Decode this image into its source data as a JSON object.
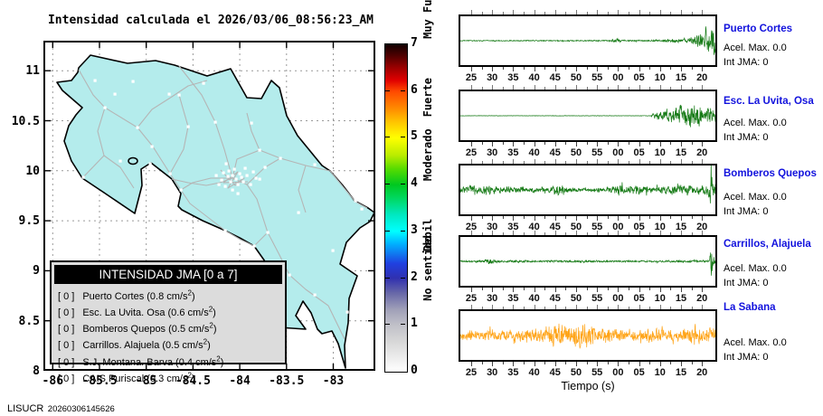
{
  "title": "Intensidad calculada el 2026/03/06_08:56:23_AM",
  "footer": {
    "label": "LISUCR",
    "number": "20260306145626"
  },
  "map": {
    "x_tick_labels": [
      "-86",
      "-85.5",
      "-85",
      "-84.5",
      "-84",
      "-83.5",
      "-83"
    ],
    "y_tick_labels": [
      "11",
      "10.5",
      "10",
      "9.5",
      "9",
      "8.5",
      "8"
    ],
    "land_color": "#b4ecec",
    "road_color": "#b5b5b5",
    "legend": {
      "title": "INTENSIDAD JMA [0 a 7]",
      "items": [
        {
          "bracket": "[ 0 ]",
          "name": "Puerto Cortes",
          "accel": "0.8 cm/s",
          "sup": "2",
          "tail": ")"
        },
        {
          "bracket": "[ 0 ]",
          "name": "Esc. La Uvita. Osa",
          "accel": "0.6 cm/s",
          "sup": "2",
          "tail": ")"
        },
        {
          "bracket": "[ 0 ]",
          "name": "Bomberos Quepos",
          "accel": "0.5 cm/s",
          "sup": "2",
          "tail": ")"
        },
        {
          "bracket": "[ 0 ]",
          "name": "Carrillos. Alajuela",
          "accel": "0.5 cm/s",
          "sup": "2",
          "tail": ")"
        },
        {
          "bracket": "[ 0 ]",
          "name": "S.J. Montana. Barva",
          "accel": "0.4 cm/s",
          "sup": "2",
          "tail": ")"
        },
        {
          "bracket": "[ 0 ]",
          "name": "CAIS Puriscal",
          "accel": "0.3 cm/s",
          "sup": "2",
          "tail": ")"
        }
      ]
    }
  },
  "colorbar": {
    "min": 0,
    "max": 7,
    "tick_labels": [
      "0",
      "1",
      "2",
      "3",
      "4",
      "5",
      "6",
      "7"
    ],
    "category_labels": [
      {
        "text": "No sentido",
        "value": 0.8
      },
      {
        "text": "Debil",
        "value": 2.2
      },
      {
        "text": "Moderado",
        "value": 3.5
      },
      {
        "text": "Fuerte",
        "value": 5.0
      },
      {
        "text": "Muy Fuerte",
        "value": 6.4
      }
    ]
  },
  "time_axis": {
    "tick_labels": [
      "25",
      "30",
      "35",
      "40",
      "45",
      "50",
      "55",
      "00",
      "05",
      "10",
      "15",
      "20"
    ],
    "xlabel": "Tiempo (s)"
  },
  "chart_data": {
    "type": "line",
    "description": "Five seismogram acceleration traces (amplitude vs time in seconds); envelopes give normalized amplitude 0-1 over the 60 s window",
    "stations": [
      {
        "name": "Puerto Cortes",
        "acel_text": "Acel. Max. 0.0",
        "jma_text": "Int JMA: 0",
        "color": "#157a15",
        "seed": 11,
        "envelope": [
          [
            0,
            0.035
          ],
          [
            0.1,
            0.03
          ],
          [
            0.2,
            0.035
          ],
          [
            0.3,
            0.03
          ],
          [
            0.4,
            0.035
          ],
          [
            0.5,
            0.03
          ],
          [
            0.58,
            0.04
          ],
          [
            0.615,
            0.13
          ],
          [
            0.63,
            0.05
          ],
          [
            0.7,
            0.04
          ],
          [
            0.76,
            0.05
          ],
          [
            0.8,
            0.09
          ],
          [
            0.84,
            0.14
          ],
          [
            0.87,
            0.1
          ],
          [
            0.9,
            0.22
          ],
          [
            0.93,
            0.35
          ],
          [
            0.96,
            0.55
          ],
          [
            0.98,
            0.8
          ],
          [
            1,
            1.05
          ]
        ]
      },
      {
        "name": "Esc. La Uvita, Osa",
        "acel_text": "Acel. Max. 0.0",
        "jma_text": "Int JMA: 0",
        "color": "#157a15",
        "seed": 22,
        "envelope": [
          [
            0,
            0.013
          ],
          [
            0.7,
            0.013
          ],
          [
            0.745,
            0.02
          ],
          [
            0.76,
            0.22
          ],
          [
            0.78,
            0.3
          ],
          [
            0.8,
            0.28
          ],
          [
            0.83,
            0.45
          ],
          [
            0.86,
            0.65
          ],
          [
            0.88,
            0.5
          ],
          [
            0.905,
            0.9
          ],
          [
            0.92,
            0.6
          ],
          [
            0.94,
            0.7
          ],
          [
            0.96,
            0.5
          ],
          [
            0.98,
            0.55
          ],
          [
            1,
            0.45
          ]
        ]
      },
      {
        "name": "Bomberos Quepos",
        "acel_text": "Acel. Max. 0.0",
        "jma_text": "Int JMA: 0",
        "color": "#157a15",
        "seed": 33,
        "envelope": [
          [
            0,
            0.18
          ],
          [
            0.04,
            0.26
          ],
          [
            0.08,
            0.22
          ],
          [
            0.12,
            0.26
          ],
          [
            0.16,
            0.2
          ],
          [
            0.2,
            0.22
          ],
          [
            0.25,
            0.16
          ],
          [
            0.3,
            0.14
          ],
          [
            0.36,
            0.16
          ],
          [
            0.385,
            0.42
          ],
          [
            0.41,
            0.18
          ],
          [
            0.46,
            0.12
          ],
          [
            0.52,
            0.1
          ],
          [
            0.56,
            0.12
          ],
          [
            0.6,
            0.26
          ],
          [
            0.63,
            0.3
          ],
          [
            0.66,
            0.22
          ],
          [
            0.68,
            0.32
          ],
          [
            0.71,
            0.26
          ],
          [
            0.74,
            0.2
          ],
          [
            0.77,
            0.28
          ],
          [
            0.8,
            0.24
          ],
          [
            0.83,
            0.3
          ],
          [
            0.86,
            0.26
          ],
          [
            0.89,
            0.28
          ],
          [
            0.92,
            0.24
          ],
          [
            0.95,
            0.3
          ],
          [
            0.97,
            0.35
          ],
          [
            0.982,
            1.1
          ],
          [
            0.99,
            0.5
          ],
          [
            1,
            0.5
          ]
        ]
      },
      {
        "name": "Carrillos, Alajuela",
        "acel_text": "Acel. Max. 0.0",
        "jma_text": "Int JMA: 0",
        "color": "#157a15",
        "seed": 44,
        "envelope": [
          [
            0,
            0.05
          ],
          [
            0.06,
            0.06
          ],
          [
            0.09,
            0.09
          ],
          [
            0.115,
            0.17
          ],
          [
            0.14,
            0.09
          ],
          [
            0.18,
            0.06
          ],
          [
            0.25,
            0.07
          ],
          [
            0.32,
            0.06
          ],
          [
            0.4,
            0.07
          ],
          [
            0.45,
            0.1
          ],
          [
            0.5,
            0.07
          ],
          [
            0.58,
            0.05
          ],
          [
            0.66,
            0.06
          ],
          [
            0.74,
            0.05
          ],
          [
            0.82,
            0.06
          ],
          [
            0.9,
            0.07
          ],
          [
            0.95,
            0.08
          ],
          [
            0.975,
            0.09
          ],
          [
            0.984,
            1.1
          ],
          [
            0.993,
            0.6
          ],
          [
            1,
            0.3
          ]
        ]
      },
      {
        "name": "La Sabana",
        "acel_text": "Acel. Max. 0.0",
        "jma_text": "Int JMA: 0",
        "color": "#ffa418",
        "seed": 55,
        "envelope": [
          [
            0,
            0.3
          ],
          [
            0.08,
            0.33
          ],
          [
            0.15,
            0.3
          ],
          [
            0.22,
            0.34
          ],
          [
            0.3,
            0.42
          ],
          [
            0.35,
            0.55
          ],
          [
            0.385,
            0.75
          ],
          [
            0.41,
            0.5
          ],
          [
            0.44,
            0.6
          ],
          [
            0.47,
            0.75
          ],
          [
            0.5,
            0.85
          ],
          [
            0.53,
            0.55
          ],
          [
            0.58,
            0.45
          ],
          [
            0.64,
            0.4
          ],
          [
            0.7,
            0.38
          ],
          [
            0.76,
            0.36
          ],
          [
            0.82,
            0.35
          ],
          [
            0.88,
            0.42
          ],
          [
            0.92,
            0.6
          ],
          [
            0.95,
            0.5
          ],
          [
            1,
            0.42
          ]
        ]
      }
    ]
  }
}
